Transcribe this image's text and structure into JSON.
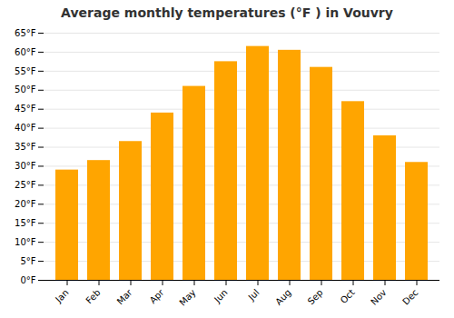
{
  "chart_data": {
    "type": "bar",
    "title": "Average monthly temperatures (°F ) in Vouvry",
    "categories": [
      "Jan",
      "Feb",
      "Mar",
      "Apr",
      "May",
      "Jun",
      "Jul",
      "Aug",
      "Sep",
      "Oct",
      "Nov",
      "Dec"
    ],
    "values": [
      29,
      31.5,
      36.5,
      44,
      51,
      57.5,
      61.5,
      60.5,
      56,
      47,
      38,
      31
    ],
    "color": "#FFA500",
    "ylim": [
      0,
      65
    ],
    "yticks": [
      {
        "value": 0,
        "label": "0°F"
      },
      {
        "value": 5,
        "label": "5°F"
      },
      {
        "value": 10,
        "label": "10°F"
      },
      {
        "value": 15,
        "label": "15°F"
      },
      {
        "value": 20,
        "label": "20°F"
      },
      {
        "value": 25,
        "label": "25°F"
      },
      {
        "value": 30,
        "label": "30°F"
      },
      {
        "value": 35,
        "label": "35°F"
      },
      {
        "value": 40,
        "label": "40°F"
      },
      {
        "value": 45,
        "label": "45°F"
      },
      {
        "value": 50,
        "label": "50°F"
      },
      {
        "value": 55,
        "label": "55°F"
      },
      {
        "value": 60,
        "label": "60°F"
      },
      {
        "value": 65,
        "label": "65°F"
      }
    ],
    "grid": true
  }
}
